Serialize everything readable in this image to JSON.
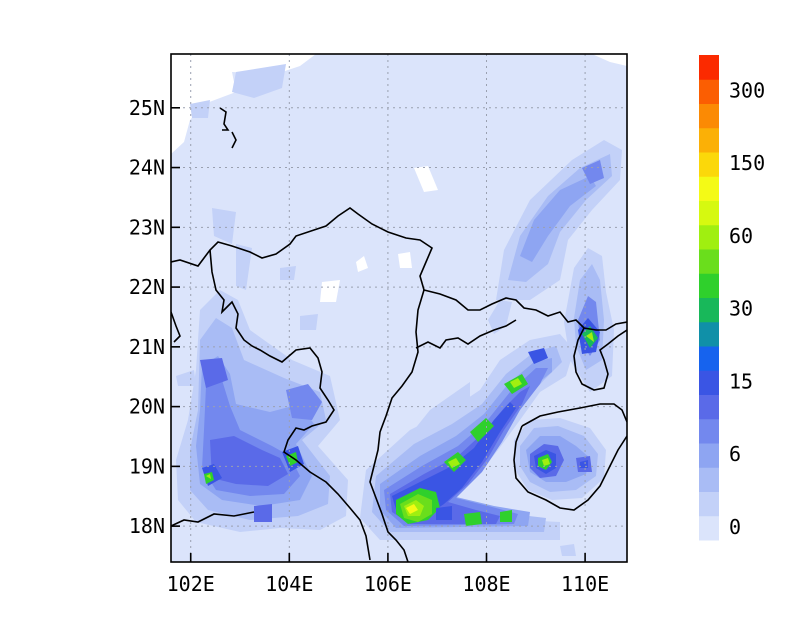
{
  "map": {
    "lon_labels": [
      "102E",
      "104E",
      "106E",
      "108E",
      "110E"
    ],
    "lat_labels": [
      "25N",
      "24N",
      "23N",
      "22N",
      "21N",
      "20N",
      "19N",
      "18N"
    ],
    "lon_values": [
      102,
      104,
      106,
      108,
      110
    ],
    "lat_values": [
      25,
      24,
      23,
      22,
      21,
      20,
      19,
      18
    ],
    "lon_range": [
      101.6,
      110.85
    ],
    "lat_range": [
      17.4,
      25.9
    ],
    "grid": true
  },
  "colorbar": {
    "labels": [
      "0",
      "6",
      "15",
      "30",
      "60",
      "150",
      "300"
    ],
    "colors": [
      "#dbe4fb",
      "#c3d1f8",
      "#a9bcf5",
      "#8ea5f2",
      "#7388ee",
      "#5a6ae8",
      "#3a55e4",
      "#1663ee",
      "#1090a8",
      "#18b85a",
      "#2fd02c",
      "#6ade1c",
      "#a0ef10",
      "#d6f910",
      "#f4fa16",
      "#fbd80a",
      "#fbb006",
      "#fb8a04",
      "#fb5e02",
      "#fb2a00"
    ]
  },
  "palette": {
    "background": "#dbe4fb",
    "light": "#c3d1f8",
    "mid": "#a9bcf5",
    "medium": "#8ea5f2",
    "dark": "#7388ee",
    "darker": "#5a6ae8",
    "deep": "#3a55e4",
    "teal": "#1090a8",
    "green": "#2fd02c",
    "lime": "#a0ef10",
    "yellow": "#f4fa16"
  }
}
